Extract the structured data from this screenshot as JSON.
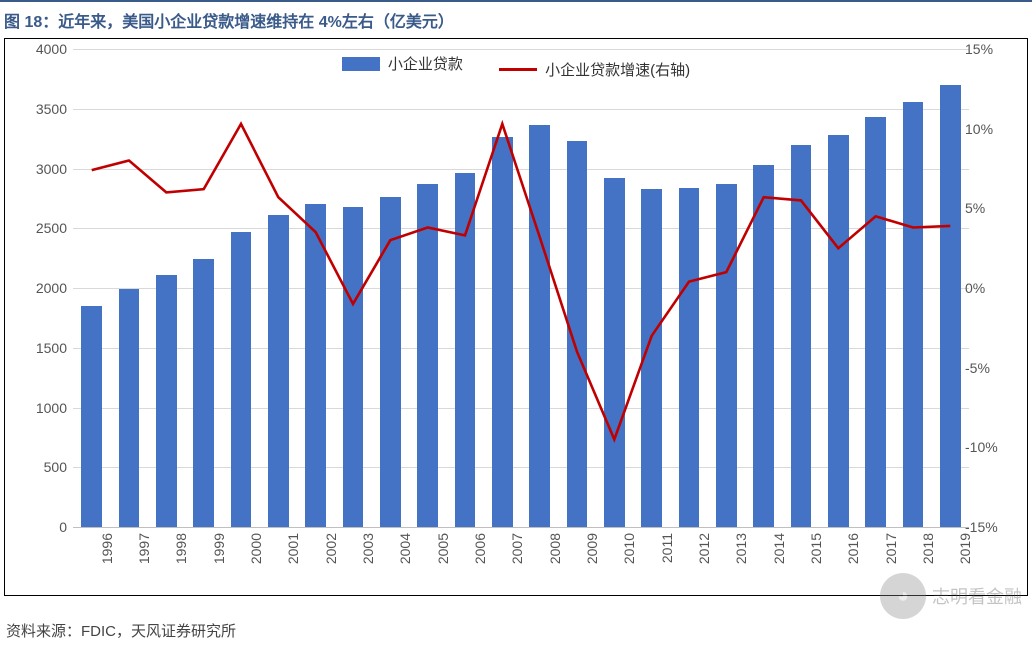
{
  "title": "图 18：近年来，美国小企业贷款增速维持在 4%左右（亿美元）",
  "source": "资料来源：FDIC，天风证券研究所",
  "watermark": "志明看金融",
  "chart": {
    "type": "combo-bar-line",
    "legend": {
      "bar_label": "小企业贷款",
      "line_label": "小企业贷款增速(右轴)"
    },
    "colors": {
      "bar": "#4472c4",
      "line": "#c00000",
      "grid": "#d9d9d9",
      "axis_zero": "#bfbfbf",
      "background": "#ffffff",
      "text": "#595959"
    },
    "y_left": {
      "min": 0,
      "max": 4000,
      "step": 500
    },
    "y_right": {
      "min": -15,
      "max": 15,
      "step": 5,
      "suffix": "%"
    },
    "categories": [
      "1996",
      "1997",
      "1998",
      "1999",
      "2000",
      "2001",
      "2002",
      "2003",
      "2004",
      "2005",
      "2006",
      "2007",
      "2008",
      "2009",
      "2010",
      "2011",
      "2012",
      "2013",
      "2014",
      "2015",
      "2016",
      "2017",
      "2018",
      "2019"
    ],
    "bar_values": [
      1850,
      1990,
      2110,
      2240,
      2470,
      2610,
      2700,
      2680,
      2760,
      2870,
      2960,
      3260,
      3360,
      3230,
      2920,
      2830,
      2840,
      2870,
      3030,
      3200,
      3280,
      3430,
      3560,
      3700
    ],
    "line_values": [
      7.4,
      8.0,
      6.0,
      6.2,
      10.3,
      5.7,
      3.5,
      -1.0,
      3.0,
      3.8,
      3.3,
      10.3,
      3.2,
      -4.0,
      -9.5,
      -3.0,
      0.4,
      1.0,
      5.7,
      5.5,
      2.5,
      4.5,
      3.8,
      3.9
    ],
    "bar_width_ratio": 0.56,
    "line_width": 2.6,
    "font_size_axis": 14,
    "font_size_legend": 15,
    "font_size_title": 16
  }
}
